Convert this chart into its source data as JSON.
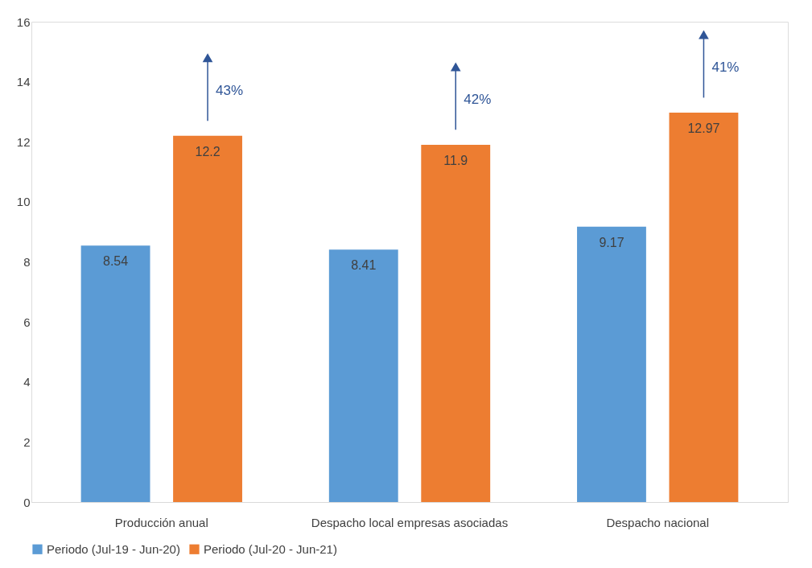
{
  "chart_data": {
    "type": "bar",
    "categories": [
      "Producción anual",
      "Despacho local empresas asociadas",
      "Despacho nacional"
    ],
    "series": [
      {
        "name": "Periodo (Jul-19 - Jun-20)",
        "color": "#5b9bd5",
        "values": [
          8.54,
          8.41,
          9.17
        ]
      },
      {
        "name": "Periodo (Jul-20 - Jun-21)",
        "color": "#ed7d31",
        "values": [
          12.2,
          11.9,
          12.97
        ]
      }
    ],
    "ylim": [
      0,
      16
    ],
    "yticks": [
      0,
      2,
      4,
      6,
      8,
      10,
      12,
      14,
      16
    ],
    "grid": false,
    "legend": "bottom",
    "data_labels": true,
    "annotations": [
      "43%",
      "42%",
      "41%"
    ]
  }
}
